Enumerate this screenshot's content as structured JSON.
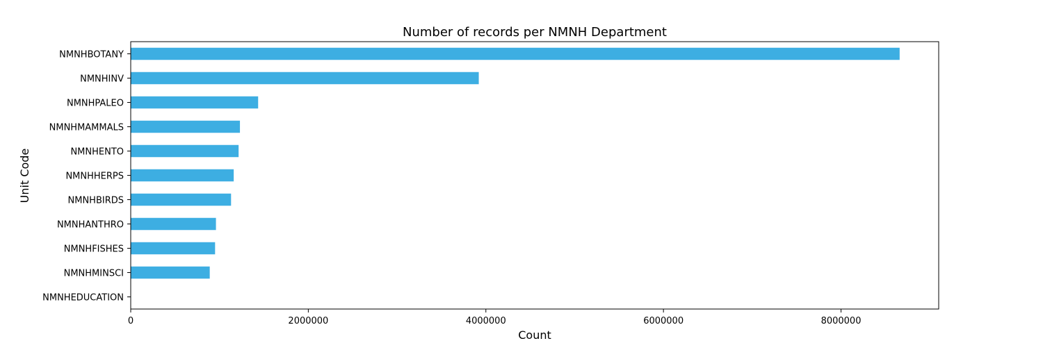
{
  "chart_data": {
    "type": "bar",
    "orientation": "horizontal",
    "title": "Number of records per NMNH Department",
    "xlabel": "Count",
    "ylabel": "Unit Code",
    "categories": [
      "NMNHBOTANY",
      "NMNHINV",
      "NMNHPALEO",
      "NMNHMAMMALS",
      "NMNHENTO",
      "NMNHHERPS",
      "NMNHBIRDS",
      "NMNHANTHRO",
      "NMNHFISHES",
      "NMNHMINSCI",
      "NMNHEDUCATION"
    ],
    "values": [
      8660000,
      3920000,
      1435000,
      1230000,
      1215000,
      1160000,
      1130000,
      960000,
      950000,
      890000,
      2000
    ],
    "xlim": [
      0,
      9100000
    ],
    "xticks": [
      0,
      2000000,
      4000000,
      6000000,
      8000000
    ],
    "xtick_labels": [
      "0",
      "2000000",
      "4000000",
      "6000000",
      "8000000"
    ],
    "grid": false,
    "legend": "none",
    "bar_color": "#3daee2"
  }
}
